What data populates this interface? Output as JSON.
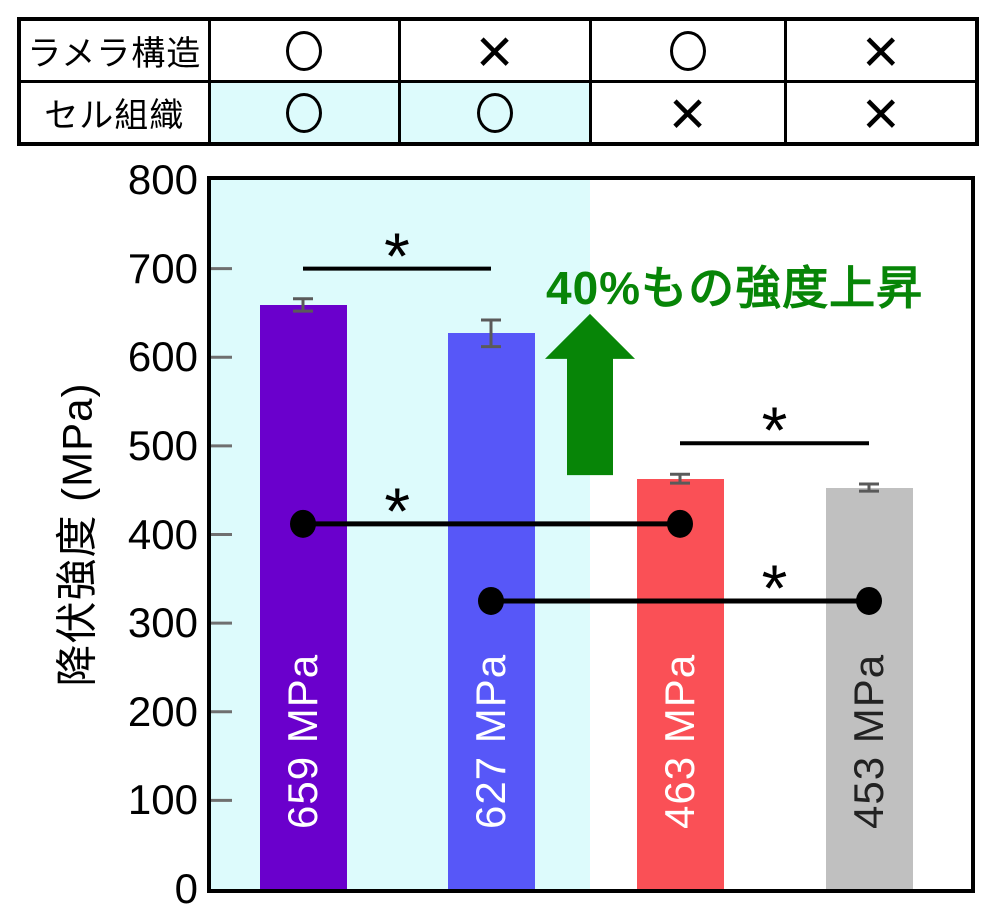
{
  "table": {
    "rows": [
      {
        "label": "ラメラ構造",
        "cells": [
          {
            "mark": "circle",
            "highlight": false
          },
          {
            "mark": "cross",
            "highlight": false
          },
          {
            "mark": "circle",
            "highlight": false
          },
          {
            "mark": "cross",
            "highlight": false
          }
        ]
      },
      {
        "label": "セル組織",
        "cells": [
          {
            "mark": "circle",
            "highlight": true
          },
          {
            "mark": "circle",
            "highlight": true
          },
          {
            "mark": "cross",
            "highlight": false
          },
          {
            "mark": "cross",
            "highlight": false
          }
        ]
      }
    ],
    "cross_glyph": "×"
  },
  "chart_data": {
    "type": "bar",
    "title": "",
    "xlabel": "",
    "ylabel": "降伏強度 (MPa)",
    "ylim": [
      0,
      800
    ],
    "yticks": [
      0,
      100,
      200,
      300,
      400,
      500,
      600,
      700,
      800
    ],
    "grid": false,
    "legend": "none",
    "values": [
      659,
      627,
      463,
      453
    ],
    "bars": [
      {
        "value": 659,
        "label": "659 MPa",
        "error": 7,
        "color": "#6A00CC",
        "label_color": "#FFFFFF",
        "lamella": true,
        "cell": true
      },
      {
        "value": 627,
        "label": "627 MPa",
        "error": 15,
        "color": "#5757F8",
        "label_color": "#FFFFFF",
        "lamella": false,
        "cell": true
      },
      {
        "value": 463,
        "label": "463 MPa",
        "error": 5,
        "color": "#FA5056",
        "label_color": "#FFFFFF",
        "lamella": true,
        "cell": false
      },
      {
        "value": 453,
        "label": "453 MPa",
        "error": 4,
        "color": "#C0C0C0",
        "label_color": "#222222",
        "lamella": false,
        "cell": false
      }
    ],
    "error_bar_color": "#5A5A5A",
    "tick_mark_color": "#6F6F6F",
    "highlight_region": {
      "color": "#DDFBFC",
      "covers": "first two bars (セル組織 ○)"
    },
    "annotations": {
      "arrow": {
        "label": "40%もの強度上昇",
        "color": "#078507",
        "from_mpa": 467,
        "to_mpa": 649
      },
      "significance": [
        {
          "style": "bracket",
          "between": [
            0,
            1
          ],
          "level_mpa": 700,
          "star": "*",
          "star_frac": 0.5
        },
        {
          "style": "bracket",
          "between": [
            2,
            3
          ],
          "level_mpa": 503,
          "star": "*",
          "star_frac": 0.5
        },
        {
          "style": "dot_line",
          "between": [
            0,
            2
          ],
          "level_mpa": 412,
          "star": "*",
          "star_frac": 0.25
        },
        {
          "style": "dot_line",
          "between": [
            1,
            3
          ],
          "level_mpa": 325,
          "star": "*",
          "star_frac": 0.75
        }
      ]
    }
  }
}
